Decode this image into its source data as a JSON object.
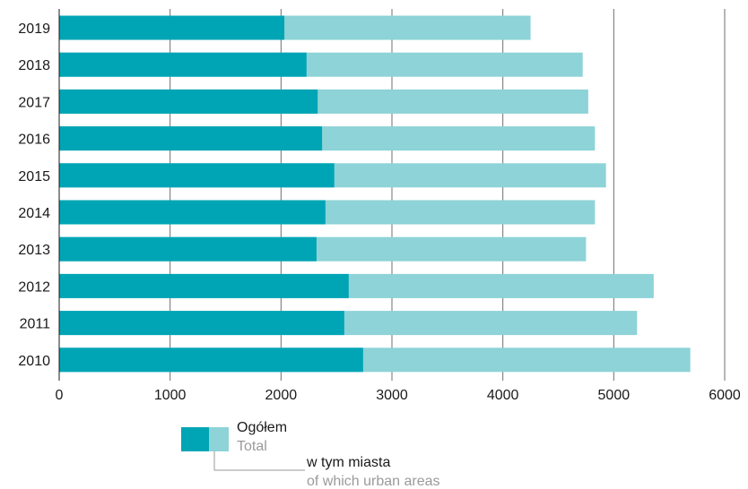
{
  "chart_data": {
    "type": "bar",
    "orientation": "horizontal",
    "stacked_overlay": true,
    "categories": [
      "2019",
      "2018",
      "2017",
      "2016",
      "2015",
      "2014",
      "2013",
      "2012",
      "2011",
      "2010"
    ],
    "series": [
      {
        "name": "w tym miasta",
        "name_secondary": "of which urban areas",
        "color": "#00a5b5",
        "values": [
          2030,
          2230,
          2330,
          2370,
          2480,
          2400,
          2320,
          2610,
          2570,
          2740
        ]
      },
      {
        "name": "Ogółem",
        "name_secondary": "Total",
        "color": "#8dd3d7",
        "values": [
          4250,
          4720,
          4770,
          4830,
          4930,
          4830,
          4750,
          5360,
          5210,
          5690
        ]
      }
    ],
    "xlim": [
      0,
      6000
    ],
    "xticks": [
      "0",
      "1000",
      "2000",
      "3000",
      "4000",
      "5000",
      "6000"
    ],
    "grid": "vertical",
    "legend": "bottom-left"
  },
  "colors": {
    "dark": "#00a5b5",
    "light": "#8dd3d7",
    "grid": "#6f6f6f",
    "axis": "#1a1a1a",
    "muted_text": "#9a9a9a"
  }
}
